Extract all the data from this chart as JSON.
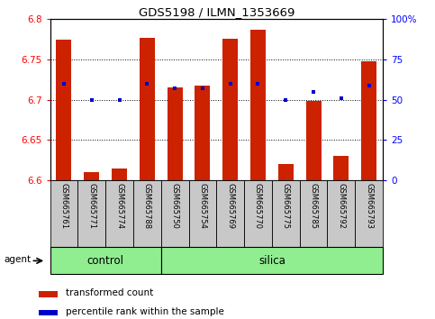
{
  "title": "GDS5198 / ILMN_1353669",
  "samples": [
    "GSM665761",
    "GSM665771",
    "GSM665774",
    "GSM665788",
    "GSM665750",
    "GSM665754",
    "GSM665769",
    "GSM665770",
    "GSM665775",
    "GSM665785",
    "GSM665792",
    "GSM665793"
  ],
  "n_control": 4,
  "n_silica": 8,
  "red_values": [
    6.775,
    6.61,
    6.615,
    6.777,
    6.715,
    6.718,
    6.776,
    6.787,
    6.62,
    6.698,
    6.63,
    6.748
  ],
  "blue_values_pct": [
    60,
    50,
    50,
    60,
    57,
    57,
    60,
    60,
    50,
    55,
    51,
    59
  ],
  "ylim_left": [
    6.6,
    6.8
  ],
  "ylim_right": [
    0,
    100
  ],
  "yticks_left": [
    6.6,
    6.65,
    6.7,
    6.75,
    6.8
  ],
  "yticks_right": [
    0,
    25,
    50,
    75,
    100
  ],
  "ytick_labels_right": [
    "0",
    "25",
    "50",
    "75",
    "100%"
  ],
  "bar_color": "#CC2200",
  "dot_color": "#0000CC",
  "baseline": 6.6,
  "green_color": "#90EE90",
  "gray_color": "#C8C8C8",
  "legend_items": [
    "transformed count",
    "percentile rank within the sample"
  ]
}
